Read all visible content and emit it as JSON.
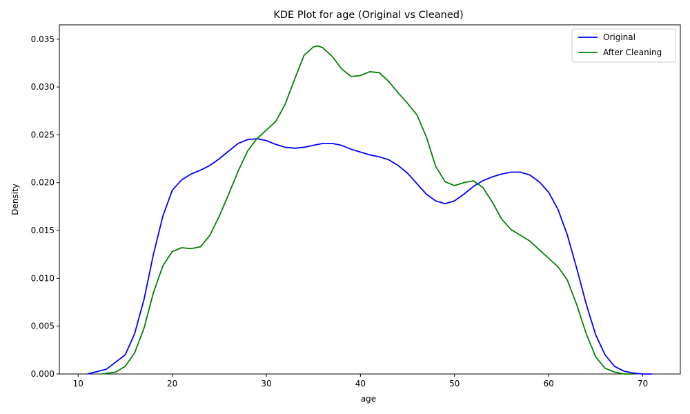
{
  "chart_data": {
    "type": "line",
    "title": "KDE Plot for age (Original vs Cleaned)",
    "xlabel": "age",
    "ylabel": "Density",
    "xlim": [
      8,
      74
    ],
    "ylim": [
      0,
      0.0365
    ],
    "x_ticks": [
      10,
      20,
      30,
      40,
      50,
      60,
      70
    ],
    "y_ticks": [
      0.0,
      0.005,
      0.01,
      0.015,
      0.02,
      0.025,
      0.03,
      0.035
    ],
    "y_tick_labels": [
      "0.000",
      "0.005",
      "0.010",
      "0.015",
      "0.020",
      "0.025",
      "0.030",
      "0.035"
    ],
    "grid": false,
    "legend_position": "top-right",
    "series": [
      {
        "name": "Original",
        "color": "#0000ff",
        "x": [
          11,
          13,
          15,
          16,
          17,
          18,
          19,
          20,
          21,
          22,
          23,
          24,
          25,
          26,
          27,
          28,
          29,
          30,
          31,
          32,
          33,
          34,
          35,
          36,
          37,
          38,
          39,
          40,
          41,
          42,
          43,
          44,
          45,
          46,
          47,
          48,
          49,
          50,
          51,
          52,
          53,
          54,
          55,
          56,
          57,
          58,
          59,
          60,
          61,
          62,
          63,
          64,
          65,
          66,
          67,
          68,
          69,
          70,
          71
        ],
        "y": [
          0.0,
          0.0005,
          0.002,
          0.0042,
          0.0078,
          0.0125,
          0.0165,
          0.0192,
          0.0203,
          0.0209,
          0.0213,
          0.0218,
          0.0225,
          0.0233,
          0.0241,
          0.0245,
          0.0246,
          0.0244,
          0.024,
          0.0237,
          0.0236,
          0.0237,
          0.0239,
          0.0241,
          0.0241,
          0.0239,
          0.0235,
          0.0232,
          0.0229,
          0.0227,
          0.0224,
          0.0218,
          0.021,
          0.0199,
          0.0188,
          0.0181,
          0.0178,
          0.0181,
          0.0188,
          0.0196,
          0.0202,
          0.0206,
          0.0209,
          0.0211,
          0.0211,
          0.0208,
          0.0201,
          0.019,
          0.0172,
          0.0145,
          0.011,
          0.0073,
          0.0041,
          0.002,
          0.0008,
          0.0003,
          0.0001,
          0.0,
          0.0
        ]
      },
      {
        "name": "After Cleaning",
        "color": "#008000",
        "x": [
          12.5,
          14,
          15,
          16,
          17,
          18,
          19,
          20,
          21,
          22,
          23,
          24,
          25,
          26,
          27,
          28,
          29,
          30,
          31,
          32,
          33,
          34,
          35,
          35.5,
          36,
          37,
          38,
          39,
          40,
          41,
          42,
          43,
          44,
          45,
          46,
          47,
          48,
          49,
          50,
          51,
          52,
          53,
          54,
          55,
          56,
          57,
          58,
          59,
          60,
          61,
          62,
          63,
          64,
          65,
          66,
          67,
          68,
          69
        ],
        "y": [
          0.0,
          0.0002,
          0.0008,
          0.0022,
          0.0048,
          0.0085,
          0.0113,
          0.0128,
          0.0132,
          0.0131,
          0.0133,
          0.0145,
          0.0165,
          0.0188,
          0.0212,
          0.0233,
          0.0246,
          0.0255,
          0.0264,
          0.0282,
          0.0308,
          0.0333,
          0.0342,
          0.0343,
          0.0341,
          0.0332,
          0.0319,
          0.0311,
          0.0312,
          0.0316,
          0.0315,
          0.0306,
          0.0294,
          0.0283,
          0.0271,
          0.0248,
          0.0217,
          0.0201,
          0.0197,
          0.02,
          0.0202,
          0.0195,
          0.018,
          0.0162,
          0.0151,
          0.0145,
          0.0139,
          0.013,
          0.0121,
          0.0112,
          0.0098,
          0.0072,
          0.0042,
          0.0018,
          0.0006,
          0.0002,
          0.0,
          0.0
        ]
      }
    ]
  }
}
